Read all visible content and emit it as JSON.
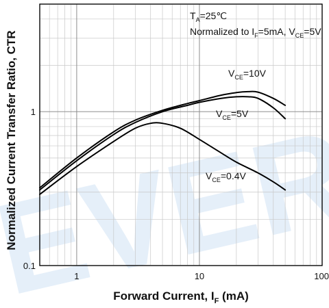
{
  "chart_data": {
    "type": "line",
    "x_scale": "log",
    "y_scale": "log",
    "xlim": [
      0.5,
      100
    ],
    "ylim": [
      0.1,
      5
    ],
    "xlabel_main": "Forward Current, I",
    "xlabel_sub": "F",
    "xlabel_unit": " (mA)",
    "ylabel": "Normalized Current Transfer Ratio, CTR",
    "x_ticks": [
      {
        "value": 1,
        "label": "1"
      },
      {
        "value": 10,
        "label": "10"
      },
      {
        "value": 100,
        "label": "100"
      }
    ],
    "y_ticks": [
      {
        "value": 0.1,
        "label": "0.1"
      },
      {
        "value": 1,
        "label": "1"
      }
    ],
    "grid": true,
    "condition": {
      "temp_main": "T",
      "temp_sub": "A",
      "temp_value": "=25℃",
      "norm_prefix": "Normalized to I",
      "norm_sub1": "F",
      "norm_mid": "=5mA, V",
      "norm_sub2": "CE",
      "norm_suffix": "=5V"
    },
    "series": [
      {
        "label_main": "V",
        "label_sub": "CE",
        "label_value": "=10V",
        "x": [
          0.5,
          1,
          2,
          3,
          5,
          8,
          10,
          15,
          20,
          25,
          30,
          40,
          50
        ],
        "y": [
          0.32,
          0.5,
          0.74,
          0.88,
          1.02,
          1.13,
          1.18,
          1.28,
          1.33,
          1.35,
          1.34,
          1.22,
          1.1
        ]
      },
      {
        "label_main": "V",
        "label_sub": "CE",
        "label_value": "=5V",
        "x": [
          0.5,
          1,
          2,
          3,
          5,
          8,
          10,
          15,
          20,
          25,
          30,
          40,
          50
        ],
        "y": [
          0.31,
          0.48,
          0.71,
          0.85,
          1.0,
          1.1,
          1.15,
          1.22,
          1.25,
          1.25,
          1.22,
          1.06,
          0.9
        ]
      },
      {
        "label_main": "V",
        "label_sub": "CE",
        "label_value": "=0.4V",
        "x": [
          0.5,
          1,
          2,
          3,
          4,
          5,
          7,
          10,
          15,
          20,
          30,
          40,
          50
        ],
        "y": [
          0.29,
          0.44,
          0.64,
          0.78,
          0.84,
          0.84,
          0.78,
          0.66,
          0.54,
          0.47,
          0.4,
          0.35,
          0.31
        ]
      }
    ],
    "watermark": "EVER"
  }
}
